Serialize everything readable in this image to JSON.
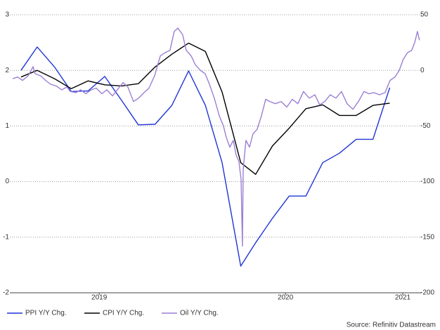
{
  "chart_data": {
    "type": "line",
    "xlim": [
      2019.02,
      2021.247
    ],
    "xticks": [
      {
        "value": 2019.5,
        "label": "2019"
      },
      {
        "value": 2020.5,
        "label": "2020"
      },
      {
        "value": 2021.13,
        "label": "2021"
      }
    ],
    "ylim": [
      -2,
      3
    ],
    "yticks": [
      -2,
      -1,
      0,
      1,
      2,
      3
    ],
    "y2lim": [
      -200,
      50
    ],
    "y2ticks": [
      -200,
      -150,
      -100,
      -50,
      0,
      50
    ],
    "grid": true,
    "legend": "bottom",
    "source": "Source: Refinitiv Datastream",
    "series": [
      {
        "name": "PPI Y/Y Chg.",
        "color": "#1f35d6",
        "x": [
          2019.08,
          2019.167,
          2019.26,
          2019.35,
          2019.44,
          2019.53,
          2019.62,
          2019.71,
          2019.8,
          2019.89,
          2019.98,
          2020.07,
          2020.16,
          2020.26,
          2020.34,
          2020.43,
          2020.52,
          2020.61,
          2020.7,
          2020.79,
          2020.88,
          2020.97,
          2021.06
        ],
        "values": [
          2.0,
          2.42,
          2.06,
          1.62,
          1.63,
          1.89,
          1.46,
          1.02,
          1.03,
          1.37,
          1.99,
          1.37,
          0.34,
          -1.52,
          -1.1,
          -0.66,
          -0.26,
          -0.26,
          0.34,
          0.51,
          0.76,
          0.76,
          1.69
        ]
      },
      {
        "name": "CPI Y/Y Chg.",
        "color": "#000000",
        "x": [
          2019.08,
          2019.167,
          2019.26,
          2019.35,
          2019.44,
          2019.53,
          2019.62,
          2019.71,
          2019.8,
          2019.89,
          2019.98,
          2020.07,
          2020.16,
          2020.26,
          2020.34,
          2020.43,
          2020.52,
          2020.61,
          2020.7,
          2020.79,
          2020.88,
          2020.97,
          2021.06
        ],
        "values": [
          1.88,
          2.0,
          1.85,
          1.67,
          1.81,
          1.74,
          1.72,
          1.76,
          2.06,
          2.29,
          2.49,
          2.34,
          1.61,
          0.34,
          0.13,
          0.64,
          0.96,
          1.31,
          1.38,
          1.19,
          1.19,
          1.37,
          1.41
        ]
      },
      {
        "name": "Oil Y/Y Chg.",
        "color": "#9b7fd4",
        "axis": "y2",
        "x": [
          2019.035,
          2019.062,
          2019.088,
          2019.118,
          2019.145,
          2019.156,
          2019.186,
          2019.212,
          2019.239,
          2019.269,
          2019.299,
          2019.326,
          2019.345,
          2019.375,
          2019.401,
          2019.428,
          2019.458,
          2019.484,
          2019.514,
          2019.541,
          2019.571,
          2019.597,
          2019.628,
          2019.654,
          2019.684,
          2019.711,
          2019.741,
          2019.767,
          2019.797,
          2019.828,
          2019.854,
          2019.88,
          2019.903,
          2019.922,
          2019.948,
          2019.967,
          2019.994,
          2020.016,
          2020.043,
          2020.069,
          2020.092,
          2020.118,
          2020.145,
          2020.167,
          2020.182,
          2020.201,
          2020.22,
          2020.235,
          2020.25,
          2020.262,
          2020.269,
          2020.273,
          2020.288,
          2020.307,
          2020.326,
          2020.348,
          2020.371,
          2020.394,
          2020.416,
          2020.446,
          2020.477,
          2020.507,
          2020.537,
          2020.567,
          2020.597,
          2020.628,
          2020.658,
          2020.684,
          2020.711,
          2020.741,
          2020.771,
          2020.801,
          2020.831,
          2020.862,
          2020.892,
          2020.922,
          2020.948,
          2020.975,
          2021.005,
          2021.035,
          2021.062,
          2021.088,
          2021.111,
          2021.133,
          2021.156,
          2021.178,
          2021.194,
          2021.209,
          2021.22
        ],
        "values": [
          -7.5,
          -6,
          -9,
          -5,
          3.3,
          -3,
          -5,
          -9,
          -12.5,
          -14,
          -17.5,
          -15,
          -19,
          -20,
          -17.5,
          -21,
          -17.5,
          -16,
          -21,
          -17.5,
          -23,
          -17.5,
          -11,
          -15,
          -28,
          -25,
          -20,
          -16,
          -5,
          13,
          16,
          18,
          35,
          38,
          32,
          18,
          13,
          5,
          0,
          -3,
          -12.5,
          -25,
          -41,
          -50,
          -60,
          -69,
          -63,
          -76,
          -82,
          -98,
          -158,
          -89,
          -63,
          -69,
          -57,
          -53,
          -41,
          -26,
          -28,
          -30,
          -28,
          -33,
          -26,
          -30,
          -19,
          -25,
          -22,
          -31,
          -28,
          -22,
          -25,
          -19,
          -30,
          -35,
          -28,
          -19,
          -21,
          -20,
          -22,
          -20,
          -9,
          -6,
          0,
          10,
          16,
          18,
          25,
          35,
          27
        ]
      }
    ]
  }
}
